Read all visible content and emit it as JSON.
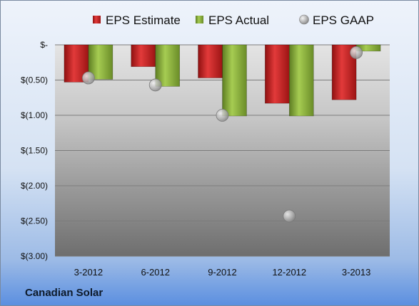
{
  "company_label": "Canadian Solar",
  "chart_data": {
    "type": "bar",
    "categories": [
      "3-2012",
      "6-2012",
      "9-2012",
      "12-2012",
      "3-2013"
    ],
    "series": [
      {
        "name": "EPS Estimate",
        "kind": "bar",
        "color": "#cc2222",
        "values": [
          -0.53,
          -0.31,
          -0.47,
          -0.83,
          -0.78
        ]
      },
      {
        "name": "EPS Actual",
        "kind": "bar",
        "color": "#8db33a",
        "values": [
          -0.49,
          -0.59,
          -1.01,
          -1.01,
          -0.09
        ]
      },
      {
        "name": "EPS GAAP",
        "kind": "point",
        "color": "#a8a8a8",
        "values": [
          -0.47,
          -0.57,
          -1.0,
          -2.43,
          -0.11
        ]
      }
    ],
    "ylim": [
      -3.0,
      0
    ],
    "yticks": [
      0,
      -0.5,
      -1.0,
      -1.5,
      -2.0,
      -2.5,
      -3.0
    ],
    "ytick_labels": [
      "$-",
      "$(0.50)",
      "$(1.00)",
      "$(1.50)",
      "$(2.00)",
      "$(2.50)",
      "$(3.00)"
    ],
    "grid": true,
    "legend_position": "top"
  }
}
